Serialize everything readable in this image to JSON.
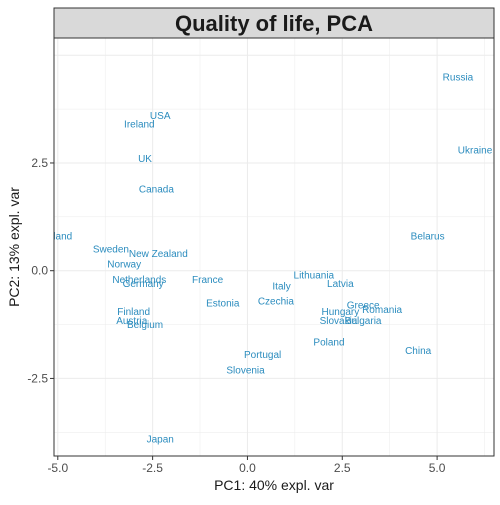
{
  "chart_data": {
    "type": "scatter",
    "title": "Quality of life, PCA",
    "xlabel": "PC1: 40% expl. var",
    "ylabel": "PC2: 13% expl. var",
    "xlim": [
      -5.1,
      6.5
    ],
    "ylim": [
      -4.3,
      5.4
    ],
    "xticks": [
      -5.0,
      -2.5,
      0.0,
      2.5,
      5.0
    ],
    "xtick_labels": [
      "-5.0",
      "-2.5",
      "0.0",
      "2.5",
      "5.0"
    ],
    "yticks": [
      -2.5,
      0.0,
      2.5
    ],
    "ytick_labels": [
      "-2.5",
      "0.0",
      "2.5"
    ],
    "grid": true,
    "label_color": "#2b8cbe",
    "points": [
      {
        "label": "Russia",
        "x": 5.55,
        "y": 4.5
      },
      {
        "label": "USA",
        "x": -2.3,
        "y": 3.6
      },
      {
        "label": "Ireland",
        "x": -2.85,
        "y": 3.4
      },
      {
        "label": "Ukraine",
        "x": 6.0,
        "y": 2.8
      },
      {
        "label": "UK",
        "x": -2.7,
        "y": 2.6
      },
      {
        "label": "Canada",
        "x": -2.4,
        "y": 1.9
      },
      {
        "label": "Switzerland",
        "x": -5.3,
        "y": 0.8
      },
      {
        "label": "Belarus",
        "x": 4.75,
        "y": 0.8
      },
      {
        "label": "Sweden",
        "x": -3.6,
        "y": 0.5
      },
      {
        "label": "New Zealand",
        "x": -2.35,
        "y": 0.4
      },
      {
        "label": "Norway",
        "x": -3.25,
        "y": 0.15
      },
      {
        "label": "Lithuania",
        "x": 1.75,
        "y": -0.1
      },
      {
        "label": "Netherlands",
        "x": -2.85,
        "y": -0.2
      },
      {
        "label": "France",
        "x": -1.05,
        "y": -0.2
      },
      {
        "label": "Germany",
        "x": -2.75,
        "y": -0.3
      },
      {
        "label": "Latvia",
        "x": 2.45,
        "y": -0.3
      },
      {
        "label": "Italy",
        "x": 0.9,
        "y": -0.35
      },
      {
        "label": "Czechia",
        "x": 0.75,
        "y": -0.7
      },
      {
        "label": "Estonia",
        "x": -0.65,
        "y": -0.75
      },
      {
        "label": "Greece",
        "x": 3.05,
        "y": -0.8
      },
      {
        "label": "Romania",
        "x": 3.55,
        "y": -0.9
      },
      {
        "label": "Finland",
        "x": -3.0,
        "y": -0.95
      },
      {
        "label": "Hungary",
        "x": 2.45,
        "y": -0.95
      },
      {
        "label": "Austria",
        "x": -3.05,
        "y": -1.15
      },
      {
        "label": "Slovakia",
        "x": 2.4,
        "y": -1.15
      },
      {
        "label": "Bulgaria",
        "x": 3.05,
        "y": -1.15
      },
      {
        "label": "Belgium",
        "x": -2.7,
        "y": -1.25
      },
      {
        "label": "Poland",
        "x": 2.15,
        "y": -1.65
      },
      {
        "label": "China",
        "x": 4.5,
        "y": -1.85
      },
      {
        "label": "Portugal",
        "x": 0.4,
        "y": -1.95
      },
      {
        "label": "Slovenia",
        "x": -0.05,
        "y": -2.3
      },
      {
        "label": "Japan",
        "x": -2.3,
        "y": -3.9
      }
    ]
  }
}
